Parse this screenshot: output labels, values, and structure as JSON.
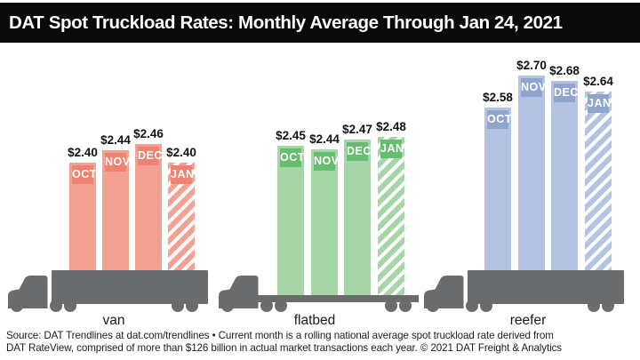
{
  "header": {
    "title": "DAT Spot Truckload Rates: Monthly Average Through Jan 24, 2021"
  },
  "footer": {
    "line1": "Source: DAT Trendlines at dat.com/trendlines • Current month is a rolling national average spot truckload rate derived from",
    "line2": "DAT RateView, comprised of more than $126 billion in actual market transactions each year. © 2021 DAT Freight & Analytics"
  },
  "chart_data": {
    "type": "bar",
    "title": "DAT Spot Truckload Rates: Monthly Average Through Jan 24, 2021",
    "categories": [
      "OCT",
      "NOV",
      "DEC",
      "JAN"
    ],
    "current_month": "JAN",
    "current_month_style": "diagonal-hatch",
    "truck_color": "#6a6b6d",
    "background_color": "#ffffff",
    "groups": [
      {
        "label": "van",
        "trailer_type": "box",
        "body_color": "#f3a193",
        "tag_color": "#ee8371",
        "values": [
          2.4,
          2.44,
          2.46,
          2.4
        ],
        "value_labels": [
          "$2.40",
          "$2.44",
          "$2.46",
          "$2.40"
        ]
      },
      {
        "label": "flatbed",
        "trailer_type": "flat",
        "body_color": "#a6d6a7",
        "tag_color": "#66bc6f",
        "values": [
          2.45,
          2.44,
          2.47,
          2.48
        ],
        "value_labels": [
          "$2.45",
          "$2.44",
          "$2.47",
          "$2.48"
        ]
      },
      {
        "label": "reefer",
        "trailer_type": "box",
        "body_color": "#b5c3e3",
        "tag_color": "#90a5ce",
        "values": [
          2.58,
          2.7,
          2.68,
          2.64
        ],
        "value_labels": [
          "$2.58",
          "$2.70",
          "$2.68",
          "$2.64"
        ]
      }
    ]
  }
}
